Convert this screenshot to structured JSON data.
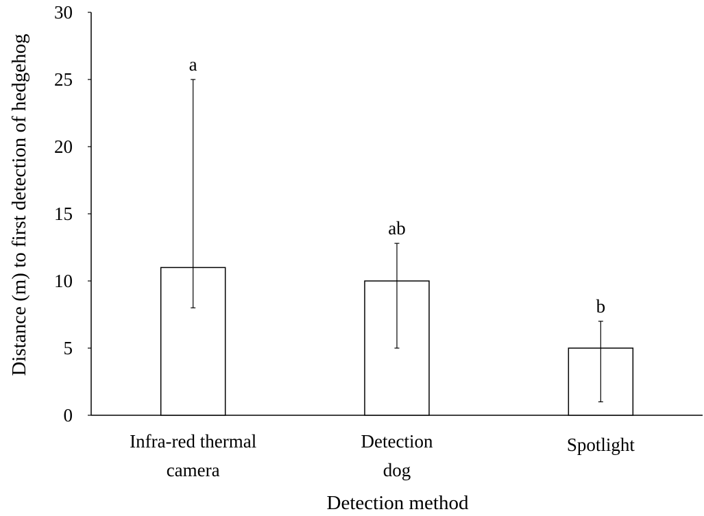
{
  "chart_data": {
    "type": "bar",
    "title": "",
    "xlabel": "Detection method",
    "ylabel": "Distance (m) to first detection of hedgehog",
    "ylim": [
      0,
      30
    ],
    "yticks": [
      "0",
      "5",
      "10",
      "15",
      "20",
      "25",
      "30"
    ],
    "grid": false,
    "legend": "none",
    "categories": [
      [
        "Infra-red thermal",
        "camera"
      ],
      [
        "Detection",
        "dog"
      ],
      [
        "Spotlight"
      ]
    ],
    "values": [
      11.0,
      10.0,
      5.0
    ],
    "error_low": [
      8.0,
      5.0,
      1.0
    ],
    "error_high": [
      25.0,
      12.8,
      7.0
    ],
    "significance_labels": [
      "a",
      "ab",
      "b"
    ],
    "colors": {
      "bar_fill": "#ffffff",
      "bar_stroke": "#000000",
      "axis": "#000000"
    }
  }
}
